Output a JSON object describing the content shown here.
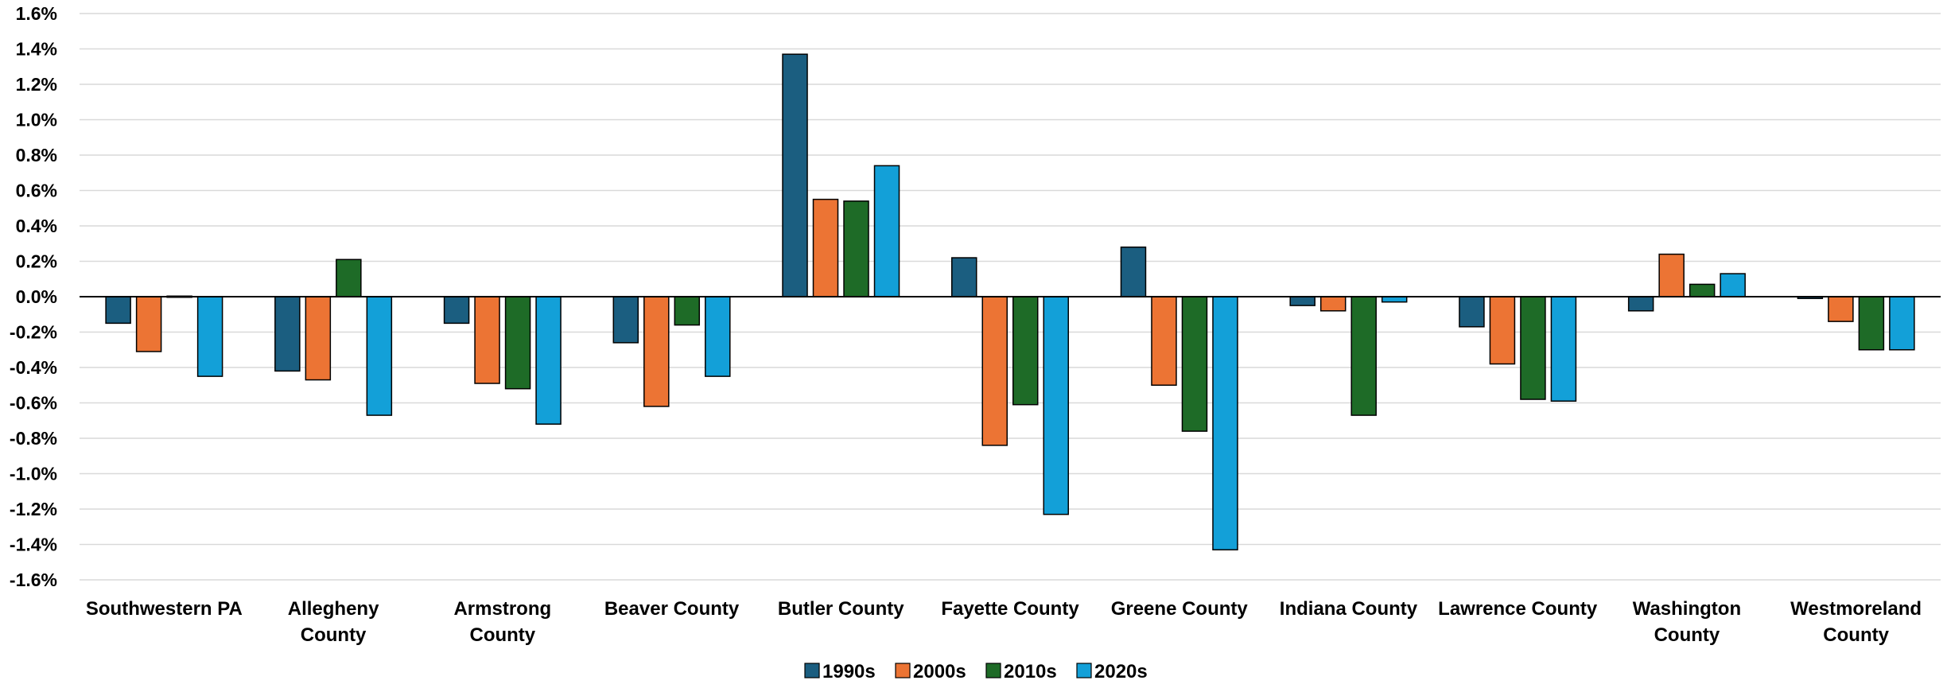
{
  "chart_data": {
    "type": "bar",
    "title": "",
    "xlabel": "",
    "ylabel": "",
    "ylim": [
      -1.6,
      1.6
    ],
    "ytick_step": 0.2,
    "y_format": "percent_1dp",
    "grid": true,
    "legend_position": "bottom-center",
    "categories": [
      "Southwestern PA",
      "Allegheny County",
      "Armstrong County",
      "Beaver County",
      "Butler County",
      "Fayette County",
      "Greene County",
      "Indiana County",
      "Lawrence County",
      "Washington County",
      "Westmoreland County"
    ],
    "category_label_lines": [
      [
        "Southwestern PA"
      ],
      [
        "Allegheny",
        "County"
      ],
      [
        "Armstrong",
        "County"
      ],
      [
        "Beaver County"
      ],
      [
        "Butler County"
      ],
      [
        "Fayette County"
      ],
      [
        "Greene County"
      ],
      [
        "Indiana County"
      ],
      [
        "Lawrence County"
      ],
      [
        "Washington",
        "County"
      ],
      [
        "Westmoreland",
        "County"
      ]
    ],
    "series": [
      {
        "name": "1990s",
        "color": "#1b5e80",
        "values": [
          -0.15,
          -0.42,
          -0.15,
          -0.26,
          1.37,
          0.22,
          0.28,
          -0.05,
          -0.17,
          -0.08,
          -0.01
        ]
      },
      {
        "name": "2000s",
        "color": "#ec7434",
        "values": [
          -0.31,
          -0.47,
          -0.49,
          -0.62,
          0.55,
          -0.84,
          -0.5,
          -0.08,
          -0.38,
          0.24,
          -0.14
        ]
      },
      {
        "name": "2010s",
        "color": "#1e6b27",
        "values": [
          0.0,
          0.21,
          -0.52,
          -0.16,
          0.54,
          -0.61,
          -0.76,
          -0.67,
          -0.58,
          0.07,
          -0.3
        ]
      },
      {
        "name": "2020s",
        "color": "#13a0d8",
        "values": [
          -0.45,
          -0.67,
          -0.72,
          -0.45,
          0.74,
          -1.23,
          -1.43,
          -0.03,
          -0.59,
          0.13,
          -0.3
        ]
      }
    ]
  }
}
